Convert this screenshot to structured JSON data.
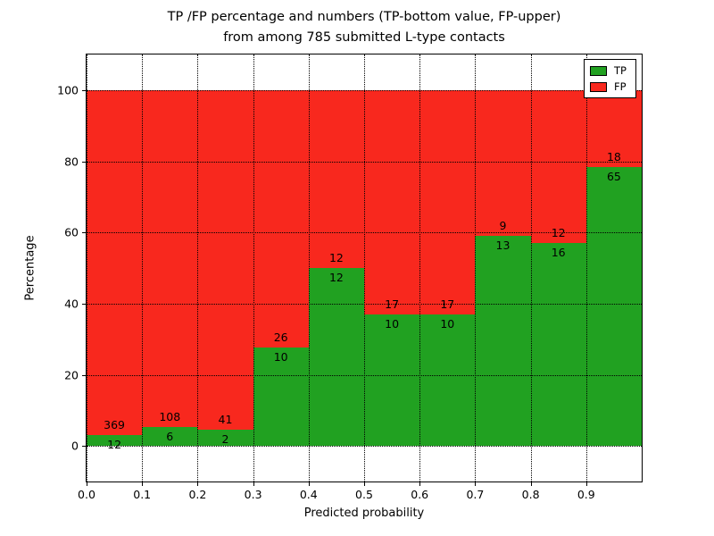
{
  "title": {
    "line1": "TP /FP percentage and numbers (TP-bottom value, FP-upper)",
    "line2": "from among 785 submitted L-type contacts"
  },
  "chart_data": {
    "type": "bar",
    "subtype": "stacked-percentage-histogram",
    "title": "TP /FP percentage and numbers (TP-bottom value, FP-upper) from among 785 submitted L-type contacts",
    "xlabel": "Predicted probability",
    "ylabel": "Percentage",
    "categories": [
      "0.0",
      "0.1",
      "0.2",
      "0.3",
      "0.4",
      "0.5",
      "0.6",
      "0.7",
      "0.8",
      "0.9"
    ],
    "bin_width": 0.1,
    "x_ticks": [
      "0.0",
      "0.1",
      "0.2",
      "0.3",
      "0.4",
      "0.5",
      "0.6",
      "0.7",
      "0.8",
      "0.9"
    ],
    "y_ticks": [
      0,
      20,
      40,
      60,
      80,
      100
    ],
    "xlim": [
      0.0,
      1.0
    ],
    "ylim": [
      -10,
      110
    ],
    "series": [
      {
        "name": "TP",
        "color": "#21a121",
        "position": "bottom",
        "counts": [
          12,
          6,
          2,
          10,
          12,
          10,
          10,
          13,
          16,
          65
        ]
      },
      {
        "name": "FP",
        "color": "#f8281e",
        "position": "top",
        "counts": [
          369,
          108,
          41,
          26,
          12,
          17,
          17,
          9,
          12,
          18
        ]
      }
    ],
    "tp_percent_of_bin": [
      3.1,
      5.3,
      4.7,
      27.8,
      50.0,
      37.0,
      37.0,
      59.1,
      57.1,
      78.3
    ],
    "bar_total_percent": 100,
    "total_contacts": 785,
    "grid": {
      "style": "dotted",
      "color": "#000000"
    },
    "legend": {
      "position": "upper-right",
      "entries": [
        "TP",
        "FP"
      ]
    }
  }
}
